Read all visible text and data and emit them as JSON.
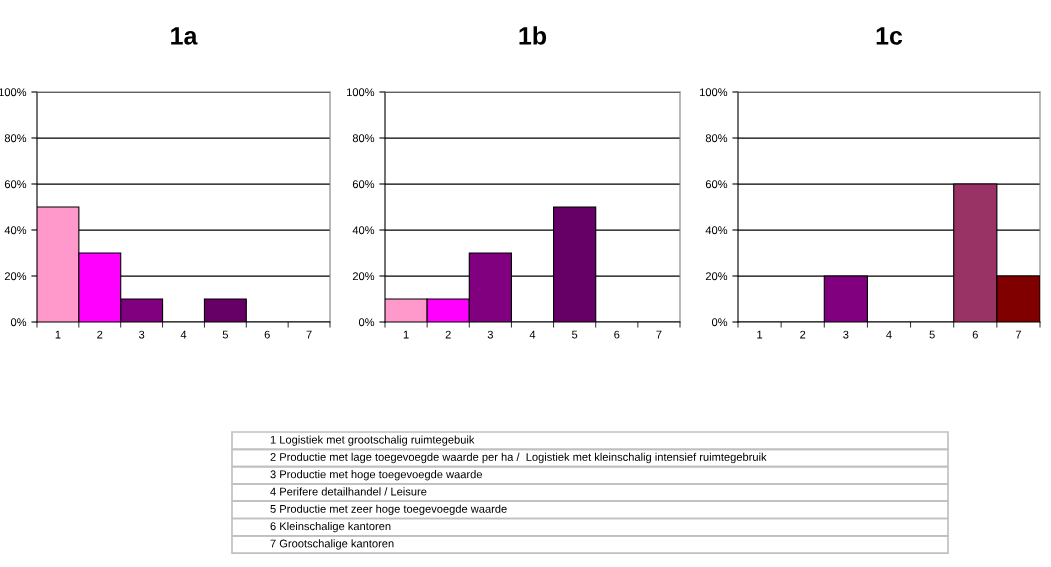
{
  "chart_data": [
    {
      "type": "bar",
      "title": "1a",
      "categories": [
        "1",
        "2",
        "3",
        "4",
        "5",
        "6",
        "7"
      ],
      "values": [
        50,
        30,
        10,
        null,
        10,
        null,
        null
      ],
      "colors": [
        "#ff99cc",
        "#ff00ff",
        "#800080",
        null,
        "#660066",
        null,
        null
      ],
      "ylim": [
        0,
        100
      ],
      "yticks": [
        {
          "value": 0,
          "label": "0%"
        },
        {
          "value": 20,
          "label": "20%"
        },
        {
          "value": 40,
          "label": "40%"
        },
        {
          "value": 60,
          "label": "60%"
        },
        {
          "value": 80,
          "label": "80%"
        },
        {
          "value": 100,
          "label": "100%"
        }
      ],
      "grid": "y"
    },
    {
      "type": "bar",
      "title": "1b",
      "categories": [
        "1",
        "2",
        "3",
        "4",
        "5",
        "6",
        "7"
      ],
      "values": [
        10,
        10,
        30,
        null,
        50,
        null,
        null
      ],
      "colors": [
        "#ff99cc",
        "#ff00ff",
        "#800080",
        null,
        "#660066",
        null,
        null
      ],
      "ylim": [
        0,
        100
      ],
      "yticks": [
        {
          "value": 0,
          "label": "0%"
        },
        {
          "value": 20,
          "label": "20%"
        },
        {
          "value": 40,
          "label": "40%"
        },
        {
          "value": 60,
          "label": "60%"
        },
        {
          "value": 80,
          "label": "80%"
        },
        {
          "value": 100,
          "label": "100%"
        }
      ],
      "grid": "y"
    },
    {
      "type": "bar",
      "title": "1c",
      "categories": [
        "1",
        "2",
        "3",
        "4",
        "5",
        "6",
        "7"
      ],
      "values": [
        null,
        null,
        20,
        null,
        null,
        60,
        20
      ],
      "colors": [
        null,
        null,
        "#800080",
        null,
        null,
        "#993366",
        "#800000"
      ],
      "ylim": [
        0,
        100
      ],
      "yticks": [
        {
          "value": 0,
          "label": "0%"
        },
        {
          "value": 20,
          "label": "20%"
        },
        {
          "value": 40,
          "label": "40%"
        },
        {
          "value": 60,
          "label": "60%"
        },
        {
          "value": 80,
          "label": "80%"
        },
        {
          "value": 100,
          "label": "100%"
        }
      ],
      "grid": "y"
    },
    {
      "type": "other",
      "annotations": [
        "1 Logistiek met grootschalig ruimtegebuik",
        "2 Productie met lage toegevoegde waarde per ha /  Logistiek met kleinschalig intensief ruimtegebruik",
        "3 Productie met hoge toegevoegde waarde",
        "4 Perifere detailhandel / Leisure",
        "5 Productie met zeer hoge toegevoegde waarde",
        "6 Kleinschalige kantoren",
        "7 Grootschalige kantoren"
      ]
    }
  ]
}
